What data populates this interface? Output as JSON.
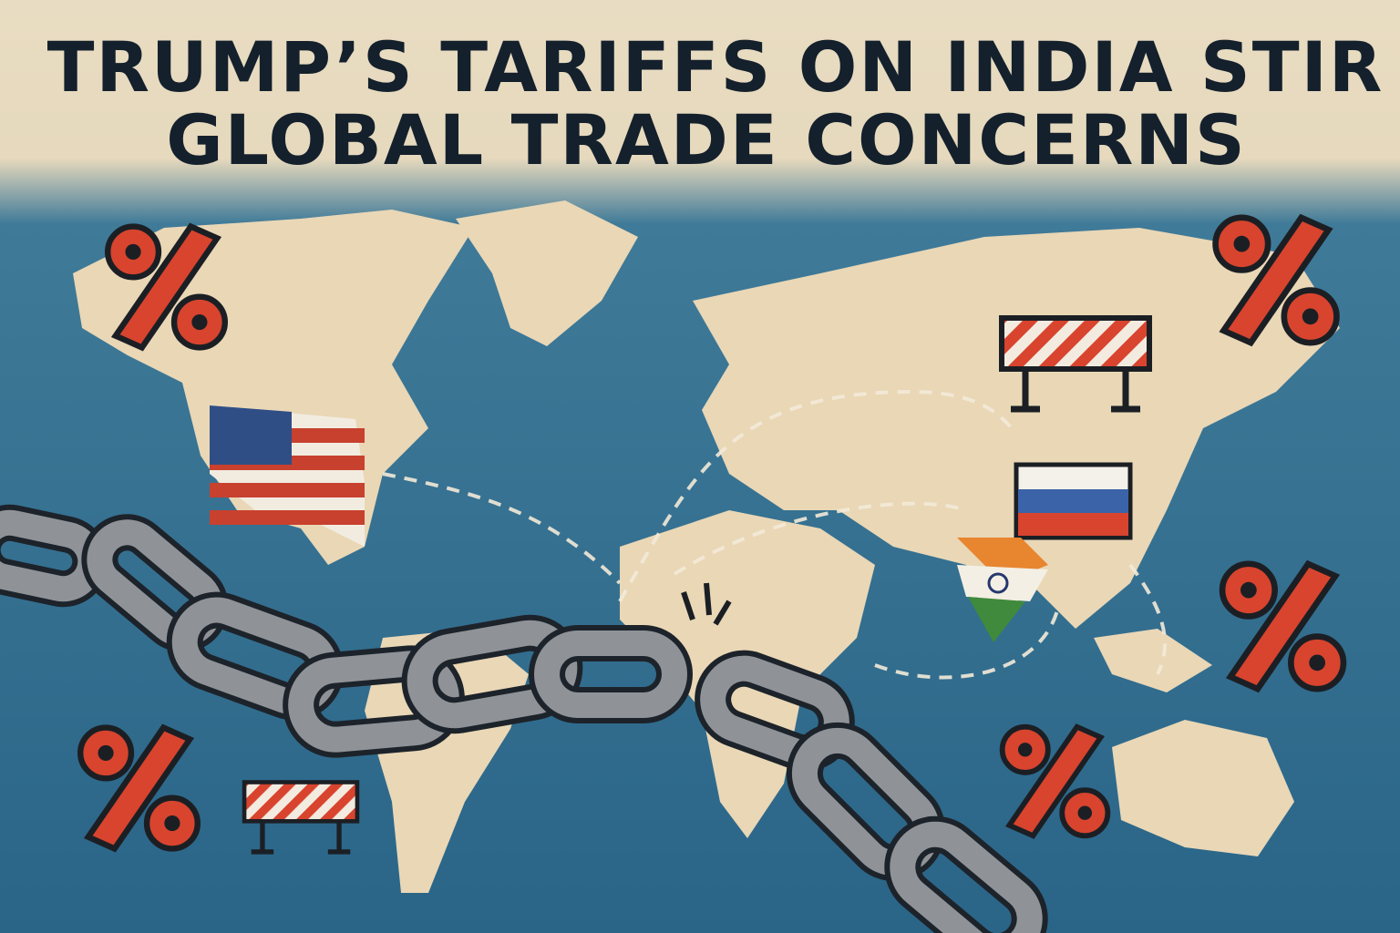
{
  "header": {
    "title_lines": [
      "TRUMP’S TARIFFS ON INDIA STIR",
      "GLOBAL TRADE CONCERNS"
    ]
  }
}
